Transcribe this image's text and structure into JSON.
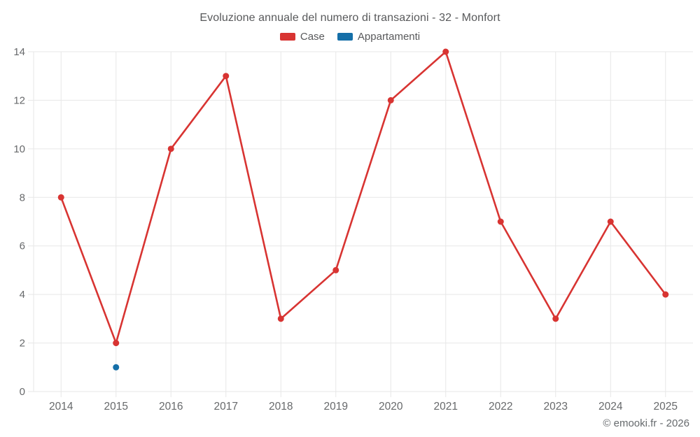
{
  "title": "Evoluzione annuale del numero di transazioni - 32 - Monfort",
  "footer": "© emooki.fr - 2026",
  "colors": {
    "case": "#d83432",
    "appartamenti": "#156fa8",
    "grid": "#e7e7e7",
    "axis_label": "#67696b",
    "title_text": "#58595b"
  },
  "legend": [
    {
      "label": "Case",
      "color": "#d83432"
    },
    {
      "label": "Appartamenti",
      "color": "#156fa8"
    }
  ],
  "chart_data": {
    "type": "line",
    "title": "Evoluzione annuale del numero di transazioni - 32 - Monfort",
    "xlabel": "",
    "ylabel": "",
    "categories": [
      "2014",
      "2015",
      "2016",
      "2017",
      "2018",
      "2019",
      "2020",
      "2021",
      "2022",
      "2023",
      "2024",
      "2025"
    ],
    "series": [
      {
        "name": "Case",
        "color": "#d83432",
        "values": [
          8,
          2,
          10,
          13,
          3,
          5,
          12,
          14,
          7,
          3,
          7,
          4
        ]
      },
      {
        "name": "Appartamenti",
        "color": "#156fa8",
        "values": [
          null,
          1,
          null,
          null,
          null,
          null,
          null,
          null,
          null,
          null,
          null,
          null
        ]
      }
    ],
    "ylim": [
      0,
      14
    ],
    "yticks": [
      0,
      2,
      4,
      6,
      8,
      10,
      12,
      14
    ],
    "grid": true,
    "legend_position": "top"
  }
}
